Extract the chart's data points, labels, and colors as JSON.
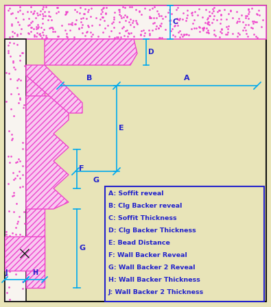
{
  "bg_color": "#e8e4b8",
  "dim_color": "#00aaee",
  "label_color": "#2222cc",
  "pink_color": "#ee44cc",
  "pink_fill": "#f8c8f0",
  "border_color": "#111111",
  "figsize": [
    3.95,
    4.48
  ],
  "dpi": 100,
  "legend_items": [
    "A: Soffit reveal",
    "B: Clg Backer reveal",
    "C: Soffit Thickness",
    "D: Clg Backer Thickness",
    "E: Bead Distance",
    "F: Wall Backer Reveal",
    "G: Wall Backer 2 Reveal",
    "H: Wall Backer Thickness",
    "J: Wall Backer 2 Thickness"
  ]
}
